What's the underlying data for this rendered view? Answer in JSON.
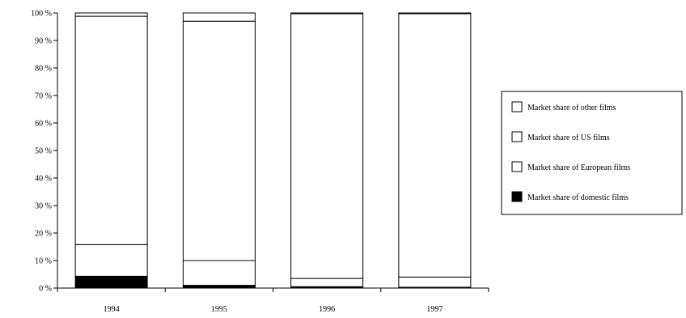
{
  "chart_data": {
    "type": "bar",
    "stacked": true,
    "normalized_percent": true,
    "categories": [
      "1994",
      "1995",
      "1996",
      "1997"
    ],
    "series": [
      {
        "name": "Market share of domestic films",
        "values": [
          4.3,
          1.0,
          0.5,
          0.3
        ],
        "color": "#000000"
      },
      {
        "name": "Market share of European films",
        "values": [
          11.5,
          9.0,
          3.0,
          3.7
        ],
        "color": "#ffffff"
      },
      {
        "name": "Market share of US films",
        "values": [
          83.0,
          87.0,
          96.2,
          95.7
        ],
        "color": "#ffffff"
      },
      {
        "name": "Market share of other films",
        "values": [
          1.2,
          3.0,
          0.3,
          0.3
        ],
        "color": "#ffffff"
      }
    ],
    "y_ticks": [
      "0 %",
      "10 %",
      "20 %",
      "30 %",
      "40 %",
      "50 %",
      "60 %",
      "70 %",
      "80 %",
      "90 %",
      "100 %"
    ],
    "ylim": [
      0,
      100
    ],
    "grid": false,
    "legend_position": "right",
    "legend_order": [
      "Market share of other films",
      "Market share of US films",
      "Market share of European films",
      "Market share of domestic films"
    ],
    "title": "",
    "xlabel": "",
    "ylabel": ""
  }
}
